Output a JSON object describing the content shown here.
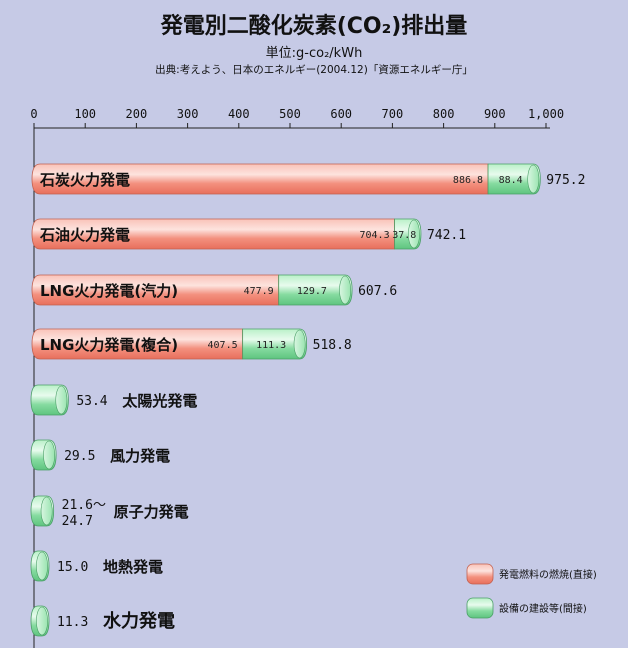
{
  "header": {
    "title": "発電別二酸化炭素(CO₂)排出量",
    "unit": "単位:g-co₂/kWh",
    "source": "出典:考えよう、日本のエネルギー(2004.12)「資源エネルギー庁」"
  },
  "colors": {
    "background": "#c6cae6",
    "fuel": "#f59b8c",
    "facility": "#8ee0a6"
  },
  "chart_data": {
    "type": "bar",
    "orientation": "horizontal",
    "stacked": true,
    "xlim": [
      0,
      1000
    ],
    "ticks": [
      {
        "value": 0,
        "label": "0"
      },
      {
        "value": 100,
        "label": "100"
      },
      {
        "value": 200,
        "label": "200"
      },
      {
        "value": 300,
        "label": "300"
      },
      {
        "value": 400,
        "label": "400"
      },
      {
        "value": 500,
        "label": "500"
      },
      {
        "value": 600,
        "label": "600"
      },
      {
        "value": 700,
        "label": "700"
      },
      {
        "value": 800,
        "label": "800"
      },
      {
        "value": 900,
        "label": "900"
      },
      {
        "value": 1000,
        "label": "1,000"
      }
    ],
    "legend": {
      "placement": "bottom-right",
      "items": [
        {
          "label": "発電燃料の燃焼(直接)",
          "color": "#f59b8c"
        },
        {
          "label": "設備の建設等(間接)",
          "color": "#8ee0a6"
        }
      ]
    },
    "categories": [
      {
        "label": "石炭火力発電",
        "fuel": 886.8,
        "facility": 88.4,
        "fuel_label": "886.8",
        "facility_label": "88.4",
        "total": 975.2,
        "total_label": "975.2"
      },
      {
        "label": "石油火力発電",
        "fuel": 704.3,
        "facility": 37.8,
        "fuel_label": "704.3",
        "facility_label": "37.8",
        "total": 742.1,
        "total_label": "742.1"
      },
      {
        "label": "LNG火力発電(汽力)",
        "fuel": 477.9,
        "facility": 129.7,
        "fuel_label": "477.9",
        "facility_label": "129.7",
        "total": 607.6,
        "total_label": "607.6"
      },
      {
        "label": "LNG火力発電(複合)",
        "fuel": 407.5,
        "facility": 111.3,
        "fuel_label": "407.5",
        "facility_label": "111.3",
        "total": 518.8,
        "total_label": "518.8"
      },
      {
        "label": "太陽光発電",
        "fuel": 0,
        "facility": 53.4,
        "total": 53.4,
        "total_label": "53.4"
      },
      {
        "label": "風力発電",
        "fuel": 0,
        "facility": 29.5,
        "total": 29.5,
        "total_label": "29.5"
      },
      {
        "label": "原子力発電",
        "fuel": 0,
        "facility": 24.7,
        "total": 24.7,
        "total_label": "21.6〜",
        "total_label2": "24.7"
      },
      {
        "label": "地熱発電",
        "fuel": 0,
        "facility": 15.0,
        "total": 15.0,
        "total_label": "15.0"
      },
      {
        "label": "水力発電",
        "fuel": 0,
        "facility": 11.3,
        "total": 11.3,
        "total_label": "11.3"
      }
    ]
  }
}
